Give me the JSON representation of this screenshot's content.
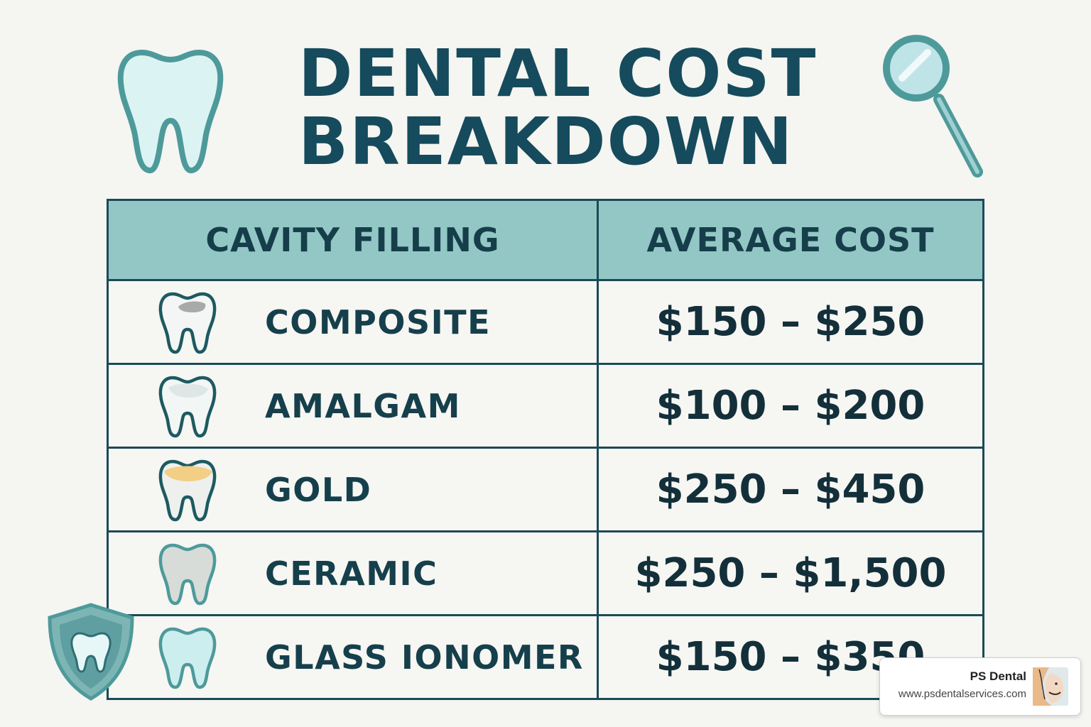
{
  "title": {
    "line1": "DENTAL COST",
    "line2": "BREAKDOWN"
  },
  "table": {
    "headers": [
      "CAVITY FILLING",
      "AVERAGE COST"
    ],
    "rows": [
      {
        "label": "COMPOSITE",
        "cost": "$150 – $250",
        "icon": "tooth-composite-icon",
        "accent": "#a9a9a9"
      },
      {
        "label": "AMALGAM",
        "cost": "$100 – $200",
        "icon": "tooth-amalgam-icon",
        "accent": "#dfe6e6"
      },
      {
        "label": "GOLD",
        "cost": "$250 – $450",
        "icon": "tooth-gold-icon",
        "accent": "#f2cf85"
      },
      {
        "label": "CERAMIC",
        "cost": "$250 – $1,500",
        "icon": "tooth-ceramic-icon",
        "accent": "#d7dcd8"
      },
      {
        "label": "GLASS IONOMER",
        "cost": "$150 – $350",
        "icon": "tooth-glass-ionomer-icon",
        "accent": "#cdeeee"
      }
    ]
  },
  "decorations": {
    "top_left": "tooth-icon",
    "top_right": "dental-mirror-icon",
    "bottom_left": "shield-tooth-icon"
  },
  "badge": {
    "name": "PS Dental",
    "url": "www.psdentalservices.com"
  },
  "colors": {
    "title": "#154b5c",
    "header_bg": "#93c7c5",
    "border": "#1b4a58",
    "background": "#f5f5f1",
    "icon_teal": "#4e9a9b"
  }
}
